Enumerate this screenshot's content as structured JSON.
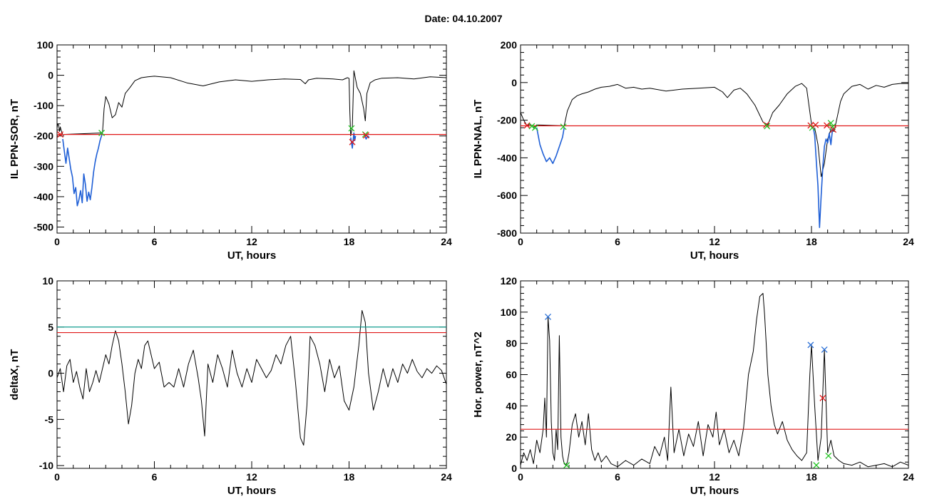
{
  "page": {
    "title": "Date:  04.10.2007"
  },
  "colors": {
    "trace": "#000000",
    "substorm_segment": "#1f5fd6",
    "threshold_red": "#e01818",
    "threshold_teal": "#0f9b8e",
    "marker_red": "#e01818",
    "marker_green": "#22c422",
    "marker_blue": "#2a6fd6"
  },
  "chart_data": [
    {
      "id": "sor",
      "type": "line",
      "ylabel": "IL PPN-SOR, nT",
      "xlabel": "UT, hours",
      "xlim": [
        0,
        24
      ],
      "ylim": [
        -520,
        100
      ],
      "xticks": [
        0,
        6,
        12,
        18,
        24
      ],
      "xtick_labels": [
        "0",
        "6",
        "12",
        "18",
        "24"
      ],
      "yticks": [
        -500,
        -400,
        -300,
        -200,
        -100,
        0,
        100
      ],
      "ytick_labels": [
        "-500",
        "-400",
        "-300",
        "-200",
        "-100",
        "0",
        "100"
      ],
      "hlines": [
        {
          "y": -195,
          "color": "red"
        }
      ],
      "series": [
        {
          "style": "black",
          "x": [
            0,
            0.05,
            0.1,
            0.15,
            0.2,
            0.25,
            0.3,
            0.35,
            2.8,
            2.9,
            3.0,
            3.2,
            3.4,
            3.6,
            3.8,
            4.0,
            4.2,
            4.5,
            4.8,
            5.2,
            5.6,
            6.0,
            7,
            8,
            9,
            10,
            11,
            12,
            13,
            14,
            15,
            15.3,
            15.5,
            16,
            17,
            17.6,
            17.9,
            18.0
          ],
          "y": [
            -175,
            -160,
            -165,
            -185,
            -170,
            -180,
            -190,
            -195,
            -190,
            -110,
            -70,
            -95,
            -140,
            -130,
            -90,
            -105,
            -60,
            -40,
            -18,
            -8,
            -5,
            -3,
            -8,
            -25,
            -35,
            -22,
            -15,
            -20,
            -15,
            -12,
            -14,
            -28,
            -15,
            -10,
            -12,
            -15,
            -8,
            -10
          ]
        },
        {
          "style": "blue",
          "x": [
            0.35,
            0.45,
            0.55,
            0.65,
            0.75,
            0.85,
            0.95,
            1.05,
            1.15,
            1.25,
            1.35,
            1.45,
            1.55,
            1.65,
            1.75,
            1.85,
            1.95,
            2.05,
            2.15,
            2.25,
            2.35,
            2.45,
            2.55,
            2.65,
            2.8
          ],
          "y": [
            -210,
            -250,
            -290,
            -240,
            -275,
            -310,
            -335,
            -390,
            -370,
            -430,
            -410,
            -380,
            -420,
            -325,
            -360,
            -415,
            -385,
            -410,
            -370,
            -320,
            -285,
            -260,
            -240,
            -215,
            -190
          ]
        },
        {
          "style": "black",
          "x": [
            18.0,
            18.05,
            18.1,
            18.2,
            18.3,
            18.5,
            18.7,
            18.9,
            19.0,
            19.1,
            19.3,
            19.6,
            20.0,
            21,
            22,
            23,
            24
          ],
          "y": [
            -10,
            -120,
            -200,
            -170,
            15,
            -40,
            -60,
            -110,
            -150,
            -60,
            -25,
            -15,
            -10,
            -8,
            -12,
            -5,
            -8
          ]
        },
        {
          "style": "blue",
          "x": [
            18.1,
            18.2,
            18.3,
            18.35,
            18.4
          ],
          "y": [
            -205,
            -240,
            -190,
            -215,
            -200
          ]
        },
        {
          "style": "blue",
          "x": [
            18.95,
            19.05,
            19.15,
            19.25
          ],
          "y": [
            -195,
            -210,
            -200,
            -205
          ]
        }
      ],
      "markers": [
        {
          "x": 0.2,
          "y": -195,
          "color": "red"
        },
        {
          "x": 2.75,
          "y": -190,
          "color": "green"
        },
        {
          "x": 18.15,
          "y": -175,
          "color": "green"
        },
        {
          "x": 18.2,
          "y": -220,
          "color": "red"
        },
        {
          "x": 19.0,
          "y": -195,
          "color": "green"
        },
        {
          "x": 19.05,
          "y": -198,
          "color": "red"
        }
      ]
    },
    {
      "id": "nal",
      "type": "line",
      "ylabel": "IL PPN-NAL, nT",
      "xlabel": "UT, hours",
      "xlim": [
        0,
        24
      ],
      "ylim": [
        -800,
        200
      ],
      "xticks": [
        0,
        6,
        12,
        18,
        24
      ],
      "xtick_labels": [
        "0",
        "6",
        "12",
        "18",
        "24"
      ],
      "yticks": [
        -800,
        -600,
        -400,
        -200,
        0,
        200
      ],
      "ytick_labels": [
        "-800",
        "-600",
        "-400",
        "-200",
        "0",
        "200"
      ],
      "hlines": [
        {
          "y": -230,
          "color": "red"
        }
      ],
      "series": [
        {
          "style": "black",
          "x": [
            0,
            0.2,
            0.4,
            0.6,
            0.8,
            1.0,
            2.7,
            2.9,
            3.2,
            3.5,
            3.8,
            4.2,
            4.6,
            5.0,
            5.5,
            6.0,
            6.5,
            7.0,
            7.5,
            8,
            9,
            10,
            11,
            12,
            12.5,
            12.8,
            13.2,
            13.6,
            14.0,
            14.5,
            15.0,
            15.3,
            15.6,
            16.0,
            16.5,
            17.0,
            17.4,
            17.7,
            18.0
          ],
          "y": [
            -160,
            -200,
            -230,
            -220,
            -240,
            -225,
            -230,
            -150,
            -90,
            -70,
            -60,
            -50,
            -35,
            -25,
            -20,
            -10,
            -30,
            -25,
            -35,
            -30,
            -45,
            -35,
            -30,
            -25,
            -50,
            -80,
            -40,
            -30,
            -60,
            -120,
            -210,
            -225,
            -160,
            -120,
            -60,
            -20,
            -5,
            -30,
            -220
          ]
        },
        {
          "style": "blue",
          "x": [
            1.0,
            1.2,
            1.4,
            1.6,
            1.8,
            2.0,
            2.2,
            2.4,
            2.6,
            2.7
          ],
          "y": [
            -240,
            -330,
            -380,
            -420,
            -400,
            -430,
            -390,
            -340,
            -290,
            -240
          ]
        },
        {
          "style": "black",
          "x": [
            18.2,
            18.4,
            18.6,
            18.8,
            19.0,
            19.2,
            19.4,
            19.6,
            19.8,
            20.0,
            20.5,
            21,
            21.5,
            22,
            22.5,
            23,
            23.5,
            24
          ],
          "y": [
            -240,
            -330,
            -500,
            -430,
            -300,
            -250,
            -260,
            -180,
            -100,
            -60,
            -20,
            -10,
            -35,
            -15,
            -25,
            -10,
            -5,
            -5
          ]
        },
        {
          "style": "blue",
          "x": [
            18.1,
            18.2,
            18.3,
            18.4,
            18.5,
            18.6,
            18.7,
            18.8,
            18.9,
            19.0,
            19.1,
            19.2,
            19.3,
            19.4
          ],
          "y": [
            -235,
            -280,
            -420,
            -550,
            -770,
            -600,
            -450,
            -340,
            -300,
            -320,
            -270,
            -330,
            -250,
            -240
          ]
        }
      ],
      "markers": [
        {
          "x": 0.4,
          "y": -228,
          "color": "red"
        },
        {
          "x": 0.7,
          "y": -232,
          "color": "green"
        },
        {
          "x": 0.9,
          "y": -240,
          "color": "green"
        },
        {
          "x": 2.65,
          "y": -235,
          "color": "green"
        },
        {
          "x": 15.2,
          "y": -225,
          "color": "red"
        },
        {
          "x": 15.25,
          "y": -232,
          "color": "green"
        },
        {
          "x": 17.95,
          "y": -228,
          "color": "red"
        },
        {
          "x": 18.05,
          "y": -240,
          "color": "green"
        },
        {
          "x": 18.25,
          "y": -225,
          "color": "red"
        },
        {
          "x": 18.95,
          "y": -228,
          "color": "red"
        },
        {
          "x": 19.2,
          "y": -215,
          "color": "green"
        },
        {
          "x": 19.3,
          "y": -235,
          "color": "green"
        },
        {
          "x": 19.35,
          "y": -250,
          "color": "red"
        }
      ]
    },
    {
      "id": "deltax",
      "type": "line",
      "ylabel": "deltaX, nT",
      "xlabel": "UT, hours",
      "xlim": [
        0,
        24
      ],
      "ylim": [
        -10.3,
        10
      ],
      "xticks": [
        0,
        6,
        12,
        18,
        24
      ],
      "xtick_labels": [
        "0",
        "6",
        "12",
        "18",
        "24"
      ],
      "yticks": [
        -10,
        -5,
        0,
        5,
        10
      ],
      "ytick_labels": [
        "-10",
        "-5",
        "0",
        "5",
        "10"
      ],
      "hlines": [
        {
          "y": 5.0,
          "color": "teal"
        },
        {
          "y": 4.4,
          "color": "red"
        }
      ],
      "series": [
        {
          "style": "black",
          "x": [
            0,
            0.2,
            0.4,
            0.6,
            0.8,
            1.0,
            1.2,
            1.4,
            1.6,
            1.8,
            2.0,
            2.2,
            2.4,
            2.6,
            2.8,
            3.0,
            3.2,
            3.4,
            3.6,
            3.8,
            4.0,
            4.2,
            4.4,
            4.6,
            4.8,
            5.0,
            5.2,
            5.4,
            5.6,
            5.8,
            6.0,
            6.3,
            6.6,
            6.9,
            7.2,
            7.5,
            7.8,
            8.1,
            8.4,
            8.7,
            8.9,
            9.1,
            9.3,
            9.6,
            9.9,
            10.2,
            10.5,
            10.8,
            11.1,
            11.4,
            11.7,
            12.0,
            12.3,
            12.6,
            12.9,
            13.2,
            13.5,
            13.8,
            14.1,
            14.4,
            14.7,
            15.0,
            15.2,
            15.4,
            15.6,
            15.9,
            16.2,
            16.5,
            16.8,
            17.1,
            17.4,
            17.7,
            18.0,
            18.3,
            18.6,
            18.8,
            19.0,
            19.2,
            19.5,
            19.8,
            20.1,
            20.4,
            20.7,
            21.0,
            21.3,
            21.6,
            21.9,
            22.2,
            22.5,
            22.8,
            23.1,
            23.4,
            23.7,
            24.0
          ],
          "y": [
            -0.5,
            0.5,
            -2.0,
            0.8,
            1.5,
            -1.0,
            0.2,
            -1.5,
            -2.8,
            0.5,
            -2.0,
            -1.0,
            0.3,
            -1.0,
            0.5,
            2.0,
            1.0,
            3.0,
            4.6,
            3.5,
            1.0,
            -2.0,
            -5.5,
            -3.5,
            0.0,
            1.5,
            0.5,
            3.0,
            3.5,
            2.0,
            0.5,
            1.2,
            -1.5,
            -1.0,
            -1.5,
            0.5,
            -1.5,
            1.0,
            2.5,
            -0.5,
            -3.0,
            -6.8,
            1.0,
            -1.0,
            2.0,
            0.5,
            -1.5,
            2.5,
            0.0,
            -1.5,
            0.5,
            -1.0,
            1.5,
            0.5,
            -0.5,
            0.3,
            2.0,
            1.0,
            3.0,
            4.0,
            -1.0,
            -7.0,
            -7.8,
            -3.5,
            4.0,
            3.0,
            1.0,
            -2.0,
            1.5,
            -0.5,
            0.8,
            -3.0,
            -4.0,
            -1.5,
            3.0,
            6.8,
            5.5,
            0.0,
            -4.0,
            -2.0,
            0.5,
            -1.5,
            0.5,
            -1.0,
            1.0,
            0.0,
            1.5,
            0.2,
            -0.5,
            0.5,
            0.0,
            0.8,
            0.3,
            -1.2
          ]
        }
      ],
      "markers": []
    },
    {
      "id": "power",
      "type": "line",
      "ylabel": "Hor. power, nT^2",
      "xlabel": "UT, hours",
      "xlim": [
        0,
        24
      ],
      "ylim": [
        0,
        120
      ],
      "xticks": [
        0,
        6,
        12,
        18,
        24
      ],
      "xtick_labels": [
        "0",
        "6",
        "12",
        "18",
        "24"
      ],
      "yticks": [
        0,
        20,
        40,
        60,
        80,
        100,
        120
      ],
      "ytick_labels": [
        "0",
        "20",
        "40",
        "60",
        "80",
        "100",
        "120"
      ],
      "hlines": [
        {
          "y": 25,
          "color": "red"
        }
      ],
      "series": [
        {
          "style": "black",
          "x": [
            0,
            0.2,
            0.4,
            0.6,
            0.8,
            1.0,
            1.2,
            1.4,
            1.5,
            1.6,
            1.7,
            1.8,
            1.9,
            2.0,
            2.1,
            2.2,
            2.3,
            2.4,
            2.5,
            2.6,
            2.7,
            2.8,
            2.9,
            3.0,
            3.2,
            3.4,
            3.6,
            3.8,
            4.0,
            4.2,
            4.4,
            4.6,
            4.8,
            5.0,
            5.3,
            5.6,
            6.0,
            6.5,
            7.0,
            7.5,
            8.0,
            8.3,
            8.6,
            8.9,
            9.1,
            9.3,
            9.5,
            9.8,
            10.1,
            10.4,
            10.7,
            11.0,
            11.3,
            11.6,
            11.9,
            12.1,
            12.3,
            12.6,
            12.9,
            13.2,
            13.5,
            13.8,
            14.1,
            14.4,
            14.6,
            14.8,
            15.0,
            15.1,
            15.2,
            15.3,
            15.5,
            15.7,
            15.9,
            16.2,
            16.5,
            16.8,
            17.1,
            17.4,
            17.7,
            17.9,
            18.0,
            18.2,
            18.4,
            18.6,
            18.8,
            19.0,
            19.2,
            19.4,
            19.7,
            20.0,
            20.5,
            21.0,
            21.5,
            22.0,
            22.5,
            23.0,
            23.5,
            24.0
          ],
          "y": [
            2,
            10,
            5,
            12,
            3,
            18,
            10,
            25,
            45,
            20,
            97,
            82,
            30,
            10,
            5,
            25,
            12,
            85,
            20,
            8,
            3,
            2,
            4,
            10,
            28,
            35,
            20,
            30,
            15,
            35,
            12,
            5,
            10,
            4,
            8,
            3,
            1,
            5,
            2,
            6,
            3,
            14,
            8,
            20,
            5,
            52,
            10,
            25,
            8,
            22,
            14,
            30,
            8,
            28,
            20,
            36,
            15,
            25,
            10,
            18,
            8,
            26,
            60,
            75,
            95,
            110,
            112,
            98,
            80,
            60,
            40,
            28,
            22,
            30,
            18,
            12,
            8,
            5,
            10,
            60,
            79,
            40,
            5,
            20,
            76,
            10,
            18,
            8,
            5,
            3,
            2,
            4,
            1,
            2,
            3,
            1,
            4,
            2
          ]
        }
      ],
      "markers": [
        {
          "x": 1.7,
          "y": 97,
          "color": "blue"
        },
        {
          "x": 2.85,
          "y": 2,
          "color": "green"
        },
        {
          "x": 17.95,
          "y": 79,
          "color": "blue"
        },
        {
          "x": 18.3,
          "y": 2,
          "color": "green"
        },
        {
          "x": 18.7,
          "y": 45,
          "color": "red"
        },
        {
          "x": 18.8,
          "y": 76,
          "color": "blue"
        },
        {
          "x": 19.05,
          "y": 8,
          "color": "green"
        }
      ]
    }
  ]
}
